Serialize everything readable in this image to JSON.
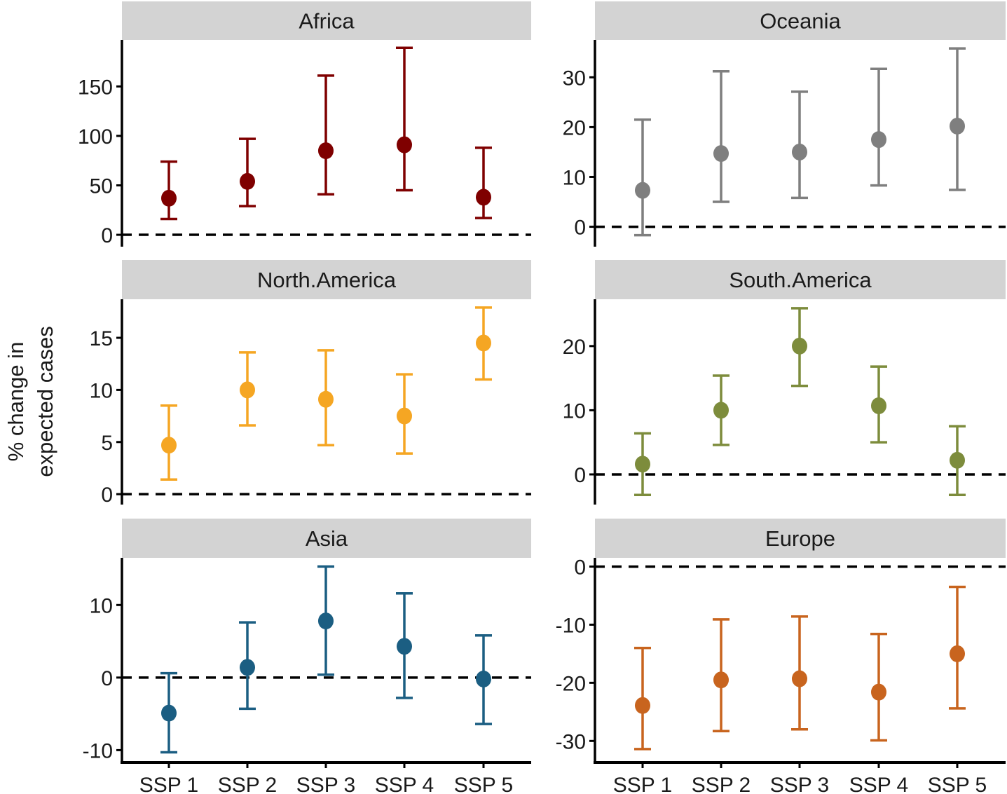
{
  "chart_data": {
    "type": "scatter",
    "subtype": "point-range (faceted)",
    "ylabel": "% change in expected cases",
    "ylabel_lines": [
      "% change in",
      "expected cases"
    ],
    "xlabel": "",
    "categories": [
      "SSP 1",
      "SSP 2",
      "SSP 3",
      "SSP 4",
      "SSP 5"
    ],
    "reference_line": {
      "y": 0,
      "style": "dashed"
    },
    "panels": [
      {
        "title": "Africa",
        "color": "#7f0000",
        "ylim": [
          -12,
          197
        ],
        "yticks": [
          0,
          50,
          100,
          150
        ],
        "values": [
          37,
          54,
          85,
          91,
          38
        ],
        "lower": [
          16,
          29,
          41,
          45,
          17
        ],
        "upper": [
          74,
          97,
          161,
          189,
          88
        ]
      },
      {
        "title": "Oceania",
        "color": "#7f7f7f",
        "ylim": [
          -4,
          37.5
        ],
        "yticks": [
          0,
          10,
          20,
          30
        ],
        "values": [
          7.3,
          14.7,
          15.0,
          17.5,
          20.2
        ],
        "lower": [
          -1.7,
          5.0,
          5.8,
          8.3,
          7.4
        ],
        "upper": [
          21.5,
          31.2,
          27.1,
          31.7,
          35.8
        ]
      },
      {
        "title": "North.America",
        "color": "#f5a623",
        "ylim": [
          -1,
          18.7
        ],
        "yticks": [
          0,
          5,
          10,
          15
        ],
        "values": [
          4.7,
          10.0,
          9.1,
          7.5,
          14.5
        ],
        "lower": [
          1.4,
          6.6,
          4.7,
          3.9,
          11.0
        ],
        "upper": [
          8.5,
          13.6,
          13.8,
          11.5,
          17.9
        ]
      },
      {
        "title": "South.America",
        "color": "#7d8c3c",
        "ylim": [
          -4.7,
          27.3
        ],
        "yticks": [
          0,
          10,
          20
        ],
        "values": [
          1.6,
          10.0,
          20.0,
          10.7,
          2.2
        ],
        "lower": [
          -3.2,
          4.6,
          13.8,
          5.0,
          -3.2
        ],
        "upper": [
          6.4,
          15.4,
          25.9,
          16.8,
          7.5
        ]
      },
      {
        "title": "Asia",
        "color": "#1b5e82",
        "ylim": [
          -11.7,
          16.5
        ],
        "yticks": [
          -10,
          0,
          10
        ],
        "values": [
          -4.9,
          1.4,
          7.8,
          4.3,
          -0.2
        ],
        "lower": [
          -10.3,
          -4.3,
          0.4,
          -2.8,
          -6.4
        ],
        "upper": [
          0.6,
          7.6,
          15.3,
          11.6,
          5.8
        ]
      },
      {
        "title": "Europe",
        "color": "#c8641e",
        "ylim": [
          -33.7,
          1.5
        ],
        "yticks": [
          -30,
          -20,
          -10,
          0
        ],
        "values": [
          -23.9,
          -19.5,
          -19.3,
          -21.6,
          -15.0
        ],
        "lower": [
          -31.4,
          -28.3,
          -28.0,
          -29.9,
          -24.4
        ],
        "upper": [
          -14.0,
          -9.1,
          -8.6,
          -11.6,
          -3.5
        ]
      }
    ]
  }
}
